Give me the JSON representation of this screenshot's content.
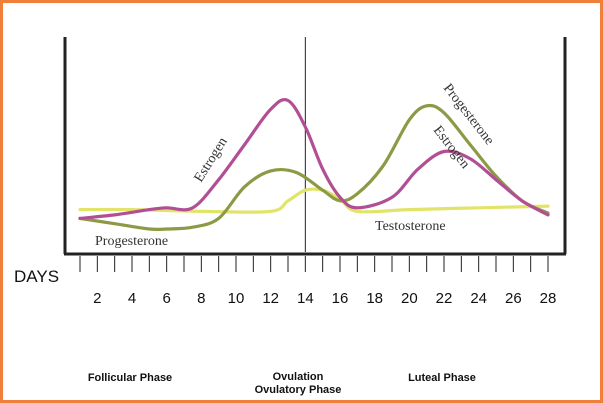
{
  "colors": {
    "border": "#f07f3c",
    "estrogen": "#b24f94",
    "progesterone": "#8c9a45",
    "testosterone": "#e2e46a",
    "axis": "#222222"
  },
  "chart_data": {
    "type": "line",
    "title": "",
    "xlabel": "DAYS",
    "ylabel": "",
    "xlim": [
      1,
      28
    ],
    "ylim": [
      0,
      100
    ],
    "x_ticks_labeled": [
      2,
      4,
      6,
      8,
      10,
      12,
      14,
      16,
      18,
      20,
      22,
      24,
      26,
      28
    ],
    "x_ticks_minor": [
      1,
      2,
      3,
      4,
      5,
      6,
      7,
      8,
      9,
      10,
      11,
      12,
      13,
      14,
      15,
      16,
      17,
      18,
      19,
      20,
      21,
      22,
      23,
      24,
      25,
      26,
      27,
      28
    ],
    "ovulation_line_day": 14,
    "grid": false,
    "series": [
      {
        "name": "Estrogen",
        "color": "#b24f94",
        "x": [
          1,
          3,
          5,
          6,
          7.5,
          9,
          10.5,
          12,
          13,
          14,
          15,
          16,
          17,
          19,
          20.5,
          22,
          23.5,
          25,
          26.5,
          28
        ],
        "y": [
          10,
          12,
          15,
          16,
          16,
          32,
          52,
          72,
          77,
          62,
          38,
          22,
          16,
          22,
          38,
          48,
          44,
          32,
          20,
          12
        ]
      },
      {
        "name": "Progesterone",
        "color": "#8c9a45",
        "x": [
          1,
          3,
          5,
          6,
          7.5,
          9,
          10.5,
          12,
          13.5,
          15,
          16,
          17,
          18.5,
          20,
          21,
          22,
          23.5,
          25,
          26.5,
          28
        ],
        "y": [
          10,
          7,
          4,
          4,
          5,
          10,
          28,
          37,
          36,
          26,
          20,
          24,
          40,
          66,
          74,
          70,
          52,
          34,
          20,
          13
        ]
      },
      {
        "name": "Testosterone",
        "color": "#e2e46a",
        "x": [
          1,
          4,
          8,
          12,
          13,
          14,
          15,
          16,
          17,
          20,
          24,
          28
        ],
        "y": [
          15,
          15,
          14,
          14,
          20,
          26,
          26,
          21,
          14,
          15,
          16,
          17
        ]
      }
    ],
    "annotations": [
      {
        "text": "Estrogen",
        "series": "Estrogen"
      },
      {
        "text": "Progesterone",
        "series": "Progesterone"
      },
      {
        "text": "Progesterone",
        "series": "Progesterone"
      },
      {
        "text": "Estrogen",
        "series": "Estrogen"
      },
      {
        "text": "Testosterone",
        "series": "Testosterone"
      }
    ],
    "phases": [
      {
        "label": "Follicular Phase"
      },
      {
        "label": "Ovulation"
      },
      {
        "label": "Ovulatory Phase"
      },
      {
        "label": "Luteal Phase"
      }
    ]
  }
}
